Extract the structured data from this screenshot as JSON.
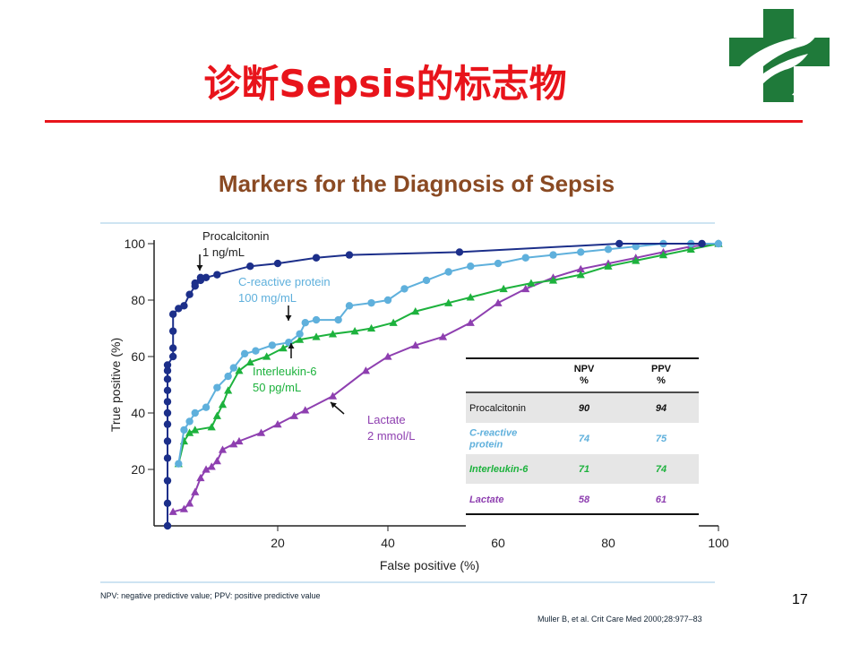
{
  "slide": {
    "title": "诊断Sepsis的标志物",
    "number": "17",
    "footnote": "NPV: negative predictive value; PPV: positive predictive value",
    "citation": "Muller B, et al. Crit Care Med 2000;28:977–83",
    "colors": {
      "title": "#e8141b",
      "rule": "#e8141b",
      "logo_green": "#1f7a3a",
      "chart_title": "#8a4a23"
    },
    "logo_icon": "cross-and-bird-logo"
  },
  "chart_data": {
    "type": "line",
    "title": "Markers for the Diagnosis of Sepsis",
    "xlabel": "False positive (%)",
    "ylabel": "True positive (%)",
    "xlim": [
      0,
      100
    ],
    "ylim": [
      0,
      100
    ],
    "xticks": [
      20,
      40,
      60,
      80,
      100
    ],
    "yticks": [
      20,
      40,
      60,
      80,
      100
    ],
    "grid": false,
    "series": [
      {
        "name": "Procalcitonin",
        "color": "#1c2f8a",
        "marker": "circle",
        "x": [
          0,
          0,
          0,
          0,
          0,
          0,
          0,
          0,
          0,
          0,
          0,
          0,
          1,
          1,
          1,
          1,
          2,
          3,
          4,
          5,
          5,
          6,
          6,
          7,
          9,
          15,
          20,
          27,
          33,
          53,
          82,
          97
        ],
        "y": [
          0,
          8,
          16,
          24,
          30,
          36,
          40,
          44,
          48,
          52,
          55,
          57,
          60,
          63,
          69,
          75,
          77,
          78,
          82,
          85,
          86,
          87,
          88,
          88,
          89,
          92,
          93,
          95,
          96,
          97,
          100,
          100
        ]
      },
      {
        "name": "C-reactive protein",
        "color": "#5fb0dc",
        "marker": "circle",
        "x": [
          2,
          3,
          4,
          5,
          7,
          9,
          11,
          12,
          14,
          16,
          19,
          22,
          24,
          25,
          27,
          31,
          33,
          37,
          40,
          43,
          47,
          51,
          55,
          60,
          65,
          70,
          75,
          80,
          85,
          90,
          95,
          100
        ],
        "y": [
          22,
          34,
          37,
          40,
          42,
          49,
          53,
          56,
          61,
          62,
          64,
          65,
          68,
          72,
          73,
          73,
          78,
          79,
          80,
          84,
          87,
          90,
          92,
          93,
          95,
          96,
          97,
          98,
          99,
          100,
          100,
          100
        ]
      },
      {
        "name": "Interleukin-6",
        "color": "#1db23d",
        "marker": "triangle",
        "x": [
          2,
          3,
          4,
          5,
          8,
          9,
          10,
          11,
          13,
          15,
          18,
          21,
          24,
          27,
          30,
          34,
          37,
          41,
          45,
          51,
          55,
          61,
          66,
          70,
          75,
          80,
          85,
          90,
          95,
          100
        ],
        "y": [
          22,
          30,
          33,
          34,
          35,
          39,
          43,
          48,
          55,
          58,
          60,
          63,
          66,
          67,
          68,
          69,
          70,
          72,
          76,
          79,
          81,
          84,
          86,
          87,
          89,
          92,
          94,
          96,
          98,
          100
        ]
      },
      {
        "name": "Lactate",
        "color": "#8e3fb0",
        "marker": "triangle",
        "x": [
          1,
          3,
          4,
          5,
          6,
          7,
          8,
          9,
          10,
          12,
          13,
          17,
          20,
          23,
          25,
          30,
          36,
          40,
          45,
          50,
          55,
          60,
          65,
          70,
          75,
          80,
          85,
          90,
          95,
          100
        ],
        "y": [
          5,
          6,
          8,
          12,
          17,
          20,
          21,
          23,
          27,
          29,
          30,
          33,
          36,
          39,
          41,
          46,
          55,
          60,
          64,
          67,
          72,
          79,
          84,
          88,
          91,
          93,
          95,
          97,
          99,
          100
        ]
      }
    ],
    "annotations": [
      {
        "name": "Procalcitonin",
        "line1": "Procalcitonin",
        "line2": "1 ng/mL",
        "color": "#222222",
        "target": [
          6,
          88
        ]
      },
      {
        "name": "C-reactive protein",
        "line1": "C-reactive protein",
        "line2": "100 mg/mL",
        "color": "#5fb0dc",
        "target": [
          22,
          72
        ]
      },
      {
        "name": "Interleukin-6",
        "line1": "Interleukin-6",
        "line2": "50 pg/mL",
        "color": "#1db23d",
        "target": [
          22,
          65
        ]
      },
      {
        "name": "Lactate",
        "line1": "Lactate",
        "line2": "2 mmol/L",
        "color": "#8e3fb0",
        "target": [
          31,
          45
        ]
      }
    ],
    "table": {
      "headers": [
        "",
        "NPV\n%",
        "PPV\n%"
      ],
      "rows": [
        {
          "label": "Procalcitonin",
          "npv": "90",
          "ppv": "94",
          "color": "#111111"
        },
        {
          "label": "C-reactive\nprotein",
          "npv": "74",
          "ppv": "75",
          "color": "#5fb0dc"
        },
        {
          "label": "Interleukin-6",
          "npv": "71",
          "ppv": "74",
          "color": "#1db23d"
        },
        {
          "label": "Lactate",
          "npv": "58",
          "ppv": "61",
          "color": "#8e3fb0"
        }
      ]
    }
  }
}
